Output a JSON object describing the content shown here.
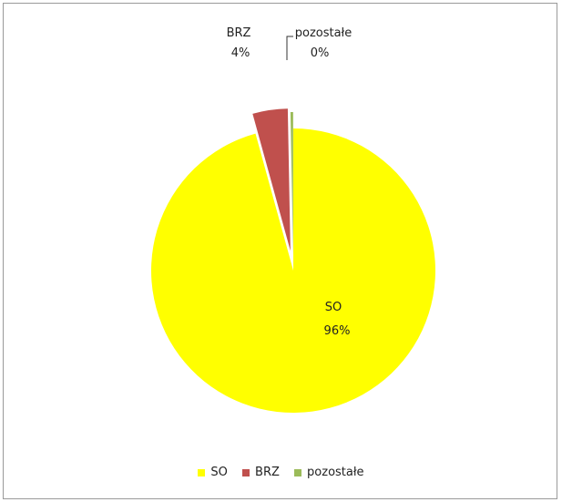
{
  "chart_data": {
    "type": "pie",
    "title": "",
    "slices": [
      {
        "name": "SO",
        "value": 96,
        "label": "96%",
        "color": "#ffff00",
        "explode": false
      },
      {
        "name": "BRZ",
        "value": 4,
        "label": "4%",
        "color": "#c0504d",
        "explode": true
      },
      {
        "name": "pozostałe",
        "value": 0.3,
        "label": "0%",
        "color": "#9bbb59",
        "explode": true
      }
    ],
    "legend": {
      "position": "bottom"
    },
    "legend_items": [
      {
        "name": "SO",
        "color": "#ffff00"
      },
      {
        "name": "BRZ",
        "color": "#c0504d"
      },
      {
        "name": "pozostałe",
        "color": "#9bbb59"
      }
    ]
  }
}
